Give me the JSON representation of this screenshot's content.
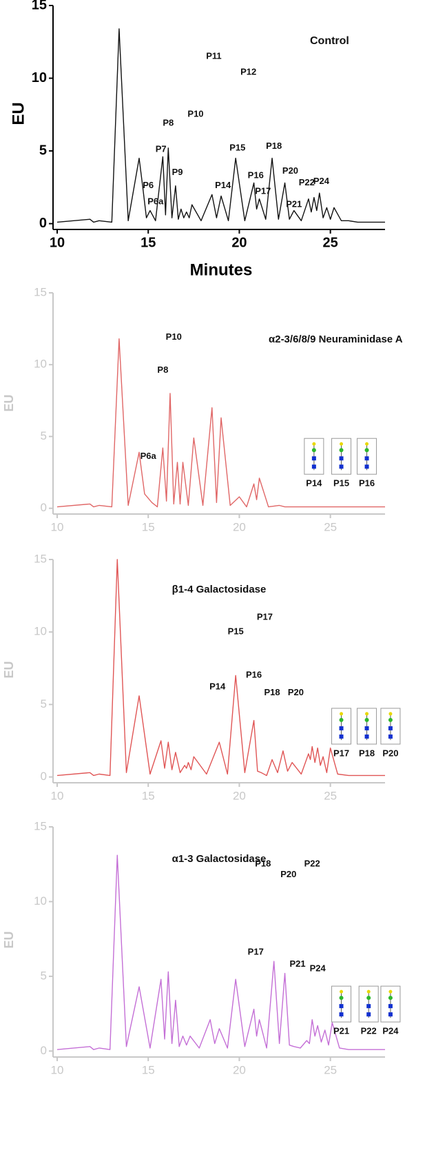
{
  "chart_data": [
    {
      "type": "line",
      "title": "Control",
      "ylabel": "EU",
      "xlabel": "Minutes",
      "color": "#111111",
      "axis_color": "#000000",
      "xlim": [
        10,
        28
      ],
      "ylim": [
        -0.4,
        15
      ],
      "xticks": [
        10,
        15,
        20,
        25
      ],
      "yticks": [
        0,
        5,
        10,
        15
      ],
      "x": [
        10,
        11.8,
        12.0,
        12.3,
        13.0,
        13.4,
        13.9,
        14.5,
        14.7,
        14.9,
        15.1,
        15.4,
        15.8,
        15.95,
        16.1,
        16.3,
        16.5,
        16.65,
        16.8,
        16.95,
        17.1,
        17.25,
        17.4,
        17.9,
        18.5,
        18.75,
        19.0,
        19.4,
        19.8,
        20.3,
        20.8,
        20.95,
        21.1,
        21.45,
        21.8,
        22.15,
        22.5,
        22.75,
        23.0,
        23.4,
        23.8,
        23.95,
        24.1,
        24.25,
        24.4,
        24.6,
        24.8,
        25.0,
        25.2,
        25.6,
        26.0,
        26.5,
        28
      ],
      "values": [
        0.1,
        0.3,
        0.1,
        0.2,
        0.1,
        13.4,
        0.2,
        4.5,
        2.5,
        0.4,
        0.9,
        0.2,
        4.6,
        0.6,
        5.2,
        0.4,
        2.6,
        0.3,
        1.0,
        0.4,
        0.8,
        0.4,
        1.3,
        0.2,
        2.0,
        0.4,
        1.9,
        0.2,
        4.5,
        0.2,
        2.8,
        1.0,
        1.7,
        0.3,
        4.5,
        0.3,
        2.8,
        0.3,
        0.9,
        0.2,
        1.7,
        0.8,
        1.8,
        0.9,
        2.1,
        0.4,
        1.1,
        0.3,
        1.1,
        0.2,
        0.2,
        0.1,
        0.1
      ],
      "annotations": [
        {
          "text": "P6",
          "x": 15.0,
          "y": 2.6
        },
        {
          "text": "P6a",
          "x": 15.4,
          "y": 1.5
        },
        {
          "text": "P7",
          "x": 15.7,
          "y": 5.1
        },
        {
          "text": "P8",
          "x": 16.1,
          "y": 6.9
        },
        {
          "text": "P9",
          "x": 16.6,
          "y": 3.5
        },
        {
          "text": "P10",
          "x": 17.6,
          "y": 7.5
        },
        {
          "text": "P11",
          "x": 18.6,
          "y": 11.5
        },
        {
          "text": "P12",
          "x": 20.5,
          "y": 10.4
        },
        {
          "text": "P14",
          "x": 19.1,
          "y": 2.6
        },
        {
          "text": "P15",
          "x": 19.9,
          "y": 5.2
        },
        {
          "text": "P16",
          "x": 20.9,
          "y": 3.3
        },
        {
          "text": "P17",
          "x": 21.3,
          "y": 2.2
        },
        {
          "text": "P18",
          "x": 21.9,
          "y": 5.3
        },
        {
          "text": "P20",
          "x": 22.8,
          "y": 3.6
        },
        {
          "text": "P21",
          "x": 23.0,
          "y": 1.3
        },
        {
          "text": "P22",
          "x": 23.7,
          "y": 2.8
        },
        {
          "text": "P24",
          "x": 24.5,
          "y": 2.9
        }
      ]
    },
    {
      "type": "line",
      "title": "α2-3/6/8/9 Neuraminidase A",
      "ylabel": "EU",
      "color": "#e06666",
      "axis_color": "#c8c8c8",
      "xlim": [
        10,
        28
      ],
      "ylim": [
        -0.4,
        15
      ],
      "xticks": [
        10,
        15,
        20,
        25
      ],
      "yticks": [
        0,
        5,
        10,
        15
      ],
      "x": [
        10,
        11.8,
        12.0,
        12.3,
        13.0,
        13.4,
        13.9,
        14.5,
        14.8,
        15.2,
        15.5,
        15.8,
        16.0,
        16.2,
        16.4,
        16.6,
        16.75,
        16.9,
        17.2,
        17.5,
        18.0,
        18.5,
        18.75,
        19.0,
        19.5,
        20.0,
        20.4,
        20.8,
        20.95,
        21.1,
        21.6,
        22.2,
        22.5,
        28
      ],
      "values": [
        0.1,
        0.3,
        0.1,
        0.2,
        0.1,
        11.8,
        0.2,
        3.9,
        1.0,
        0.4,
        0.1,
        4.2,
        0.5,
        8.0,
        0.3,
        3.2,
        0.3,
        3.2,
        0.2,
        4.9,
        0.2,
        7.0,
        0.4,
        6.3,
        0.2,
        0.8,
        0.1,
        1.7,
        0.6,
        2.1,
        0.1,
        0.2,
        0.1,
        0.1
      ],
      "annotations": [
        {
          "text": "P6a",
          "x": 15.0,
          "y": 3.6
        },
        {
          "text": "P8",
          "x": 15.8,
          "y": 9.6
        },
        {
          "text": "P10",
          "x": 16.4,
          "y": 11.9
        },
        {
          "text": "P14",
          "x": 24.1,
          "y": 1.7
        },
        {
          "text": "P15",
          "x": 25.6,
          "y": 1.7
        },
        {
          "text": "P16",
          "x": 27.0,
          "y": 1.7
        }
      ]
    },
    {
      "type": "line",
      "title": "β1-4 Galactosidase",
      "ylabel": "EU",
      "color": "#e05555",
      "axis_color": "#c8c8c8",
      "xlim": [
        10,
        28
      ],
      "ylim": [
        -0.4,
        15
      ],
      "xticks": [
        10,
        15,
        20,
        25
      ],
      "yticks": [
        0,
        5,
        10,
        15
      ],
      "x": [
        10,
        11.8,
        12.0,
        12.3,
        12.9,
        13.3,
        13.8,
        14.5,
        15.1,
        15.7,
        15.9,
        16.1,
        16.3,
        16.5,
        16.75,
        17.0,
        17.1,
        17.2,
        17.35,
        17.5,
        18.2,
        18.9,
        19.35,
        19.8,
        20.3,
        20.8,
        21.0,
        21.2,
        21.5,
        21.8,
        22.1,
        22.4,
        22.65,
        22.9,
        23.4,
        23.8,
        23.9,
        24.0,
        24.15,
        24.3,
        24.45,
        24.6,
        24.8,
        25.0,
        25.4,
        26.0,
        28
      ],
      "values": [
        0.1,
        0.3,
        0.1,
        0.2,
        0.1,
        15.0,
        0.3,
        5.6,
        0.2,
        2.5,
        0.6,
        2.4,
        0.5,
        1.7,
        0.3,
        0.8,
        0.6,
        1.0,
        0.5,
        1.4,
        0.2,
        2.4,
        0.2,
        7.0,
        0.3,
        3.9,
        0.4,
        0.3,
        0.1,
        1.2,
        0.3,
        1.8,
        0.4,
        1.0,
        0.2,
        1.6,
        1.2,
        2.1,
        1.0,
        2.0,
        0.8,
        1.4,
        0.3,
        2.0,
        0.2,
        0.1,
        0.1
      ],
      "annotations": [
        {
          "text": "P14",
          "x": 18.8,
          "y": 6.2
        },
        {
          "text": "P15",
          "x": 19.8,
          "y": 10.0
        },
        {
          "text": "P16",
          "x": 20.8,
          "y": 7.0
        },
        {
          "text": "P17",
          "x": 21.4,
          "y": 11.0
        },
        {
          "text": "P18",
          "x": 21.8,
          "y": 5.8
        },
        {
          "text": "P20",
          "x": 23.1,
          "y": 5.8
        },
        {
          "text": "P17",
          "x": 25.6,
          "y": 1.6
        },
        {
          "text": "P18",
          "x": 27.0,
          "y": 1.6
        },
        {
          "text": "P20",
          "x": 28.3,
          "y": 1.6
        }
      ]
    },
    {
      "type": "line",
      "title": "α1-3 Galactosidase",
      "ylabel": "EU",
      "color": "#c46fd6",
      "axis_color": "#c8c8c8",
      "xlim": [
        10,
        28
      ],
      "ylim": [
        -0.4,
        15
      ],
      "xticks": [
        10,
        15,
        20,
        25
      ],
      "yticks": [
        0,
        5,
        10,
        15
      ],
      "x": [
        10,
        11.8,
        12.0,
        12.3,
        12.9,
        13.3,
        13.8,
        14.5,
        15.1,
        15.7,
        15.9,
        16.1,
        16.3,
        16.5,
        16.7,
        16.9,
        17.1,
        17.3,
        17.8,
        18.4,
        18.65,
        18.9,
        19.35,
        19.8,
        20.3,
        20.8,
        20.95,
        21.1,
        21.5,
        21.9,
        22.2,
        22.5,
        22.75,
        23.0,
        23.35,
        23.7,
        23.85,
        24.0,
        24.15,
        24.3,
        24.5,
        24.7,
        24.9,
        25.1,
        25.5,
        26.0,
        28
      ],
      "values": [
        0.1,
        0.3,
        0.1,
        0.2,
        0.1,
        13.1,
        0.3,
        4.3,
        0.2,
        4.8,
        0.8,
        5.3,
        0.5,
        3.4,
        0.3,
        1.0,
        0.4,
        1.0,
        0.2,
        2.1,
        0.5,
        1.5,
        0.2,
        4.8,
        0.3,
        2.8,
        1.0,
        2.1,
        0.2,
        6.0,
        0.5,
        5.2,
        0.4,
        0.3,
        0.2,
        0.7,
        0.5,
        2.1,
        1.0,
        1.7,
        0.6,
        1.4,
        0.4,
        1.9,
        0.2,
        0.1,
        0.1
      ],
      "annotations": [
        {
          "text": "P18",
          "x": 21.3,
          "y": 12.5
        },
        {
          "text": "P22",
          "x": 24.0,
          "y": 12.5
        },
        {
          "text": "P20",
          "x": 22.7,
          "y": 11.8
        },
        {
          "text": "P17",
          "x": 20.9,
          "y": 6.6
        },
        {
          "text": "P21",
          "x": 23.2,
          "y": 5.8
        },
        {
          "text": "P24",
          "x": 24.3,
          "y": 5.5
        },
        {
          "text": "P21",
          "x": 25.6,
          "y": 1.3
        },
        {
          "text": "P22",
          "x": 27.1,
          "y": 1.3
        },
        {
          "text": "P24",
          "x": 28.3,
          "y": 1.3
        }
      ]
    }
  ]
}
